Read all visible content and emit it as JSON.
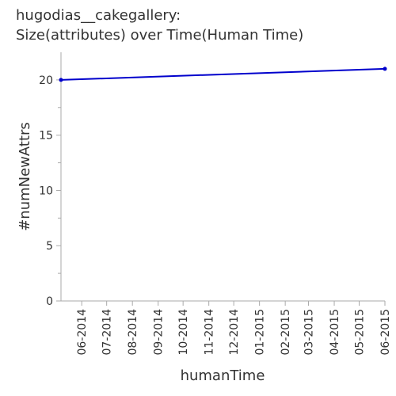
{
  "chart_data": {
    "type": "line",
    "title_line1": "hugodias__cakegallery:",
    "title_line2": "Size(attributes) over Time(Human Time)",
    "xlabel": "humanTime",
    "ylabel": "#numNewAttrs",
    "x_ticks": [
      "06-2014",
      "07-2014",
      "08-2014",
      "09-2014",
      "10-2014",
      "11-2014",
      "12-2014",
      "01-2015",
      "02-2015",
      "03-2015",
      "04-2015",
      "05-2015",
      "06-2015"
    ],
    "y_ticks": [
      "0",
      "5",
      "10",
      "15",
      "20"
    ],
    "ylim": [
      0,
      22.5
    ],
    "xlim": [
      "2014-05-07",
      "2015-06-01"
    ],
    "series": [
      {
        "color": "#0000cc",
        "points": [
          {
            "x": "2014-05-07",
            "y": 20
          },
          {
            "x": "2015-06-01",
            "y": 21
          }
        ]
      }
    ]
  }
}
